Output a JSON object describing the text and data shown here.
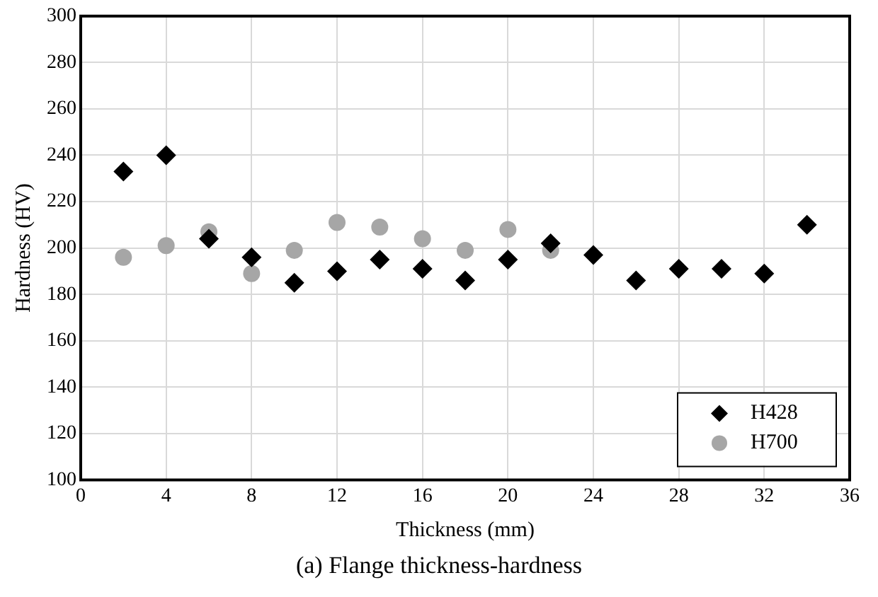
{
  "chart_data": {
    "type": "scatter",
    "title": "(a) Flange thickness-hardness",
    "xlabel": "Thickness (mm)",
    "ylabel": "Hardness (HV)",
    "series": [
      {
        "name": "H428",
        "color": "#000000",
        "marker": "diamond",
        "x": [
          2,
          4,
          6,
          8,
          10,
          12,
          14,
          16,
          18,
          20,
          22,
          24,
          26,
          28,
          30,
          32,
          34
        ],
        "values": [
          233,
          240,
          204,
          196,
          185,
          190,
          195,
          191,
          186,
          195,
          202,
          197,
          186,
          191,
          191,
          189,
          210
        ]
      },
      {
        "name": "H700",
        "color": "#a6a6a6",
        "marker": "circle",
        "x": [
          2,
          4,
          6,
          8,
          10,
          12,
          14,
          16,
          18,
          20,
          22
        ],
        "values": [
          196,
          201,
          207,
          189,
          199,
          211,
          209,
          204,
          199,
          208,
          199
        ]
      }
    ],
    "xlim": [
      0,
      36
    ],
    "xticks": [
      0,
      4,
      8,
      12,
      16,
      20,
      24,
      28,
      32,
      36
    ],
    "ylim": [
      100,
      300
    ],
    "yticks": [
      100,
      120,
      140,
      160,
      180,
      200,
      220,
      240,
      260,
      280,
      300
    ],
    "grid": true,
    "legend": "bottom right"
  }
}
